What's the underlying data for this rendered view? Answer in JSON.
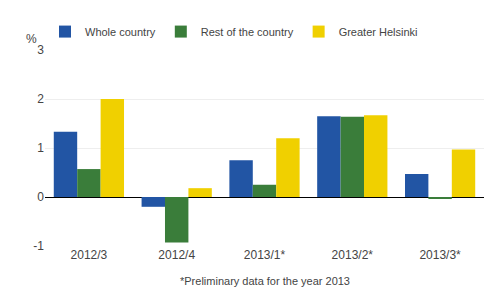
{
  "chart_data": {
    "type": "bar",
    "ylabel": "%",
    "annotations": [
      "*Preliminary data for the year 2013"
    ],
    "categories": [
      "2012/3",
      "2012/4",
      "2013/1*",
      "2013/2*",
      "2013/3*"
    ],
    "series": [
      {
        "name": "Whole country",
        "color": "#2255a4",
        "values": [
          1.33,
          -0.2,
          0.75,
          1.65,
          0.47
        ]
      },
      {
        "name": "Rest of the country",
        "color": "#3a7d3a",
        "values": [
          0.57,
          -0.93,
          0.25,
          1.64,
          -0.03
        ]
      },
      {
        "name": "Greater Helsinki",
        "color": "#f0d000",
        "values": [
          2.0,
          0.18,
          1.2,
          1.67,
          0.97
        ]
      }
    ],
    "ylim": [
      -1,
      3
    ],
    "yticks": [
      -1,
      0,
      1,
      2,
      3
    ],
    "grid": true,
    "legend": "upper left"
  }
}
